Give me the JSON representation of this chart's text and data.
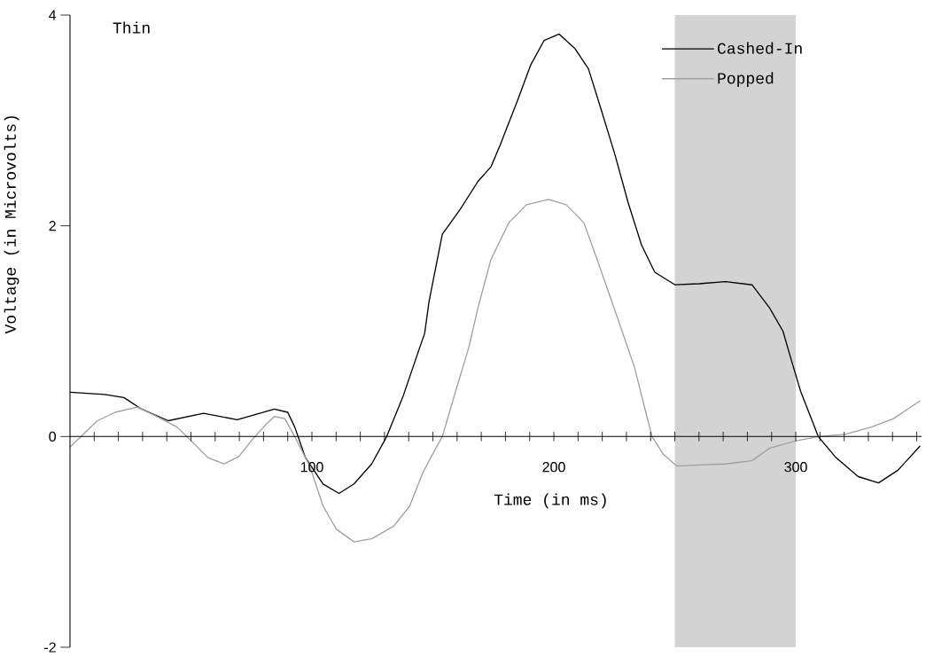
{
  "chart_data": {
    "type": "line",
    "title": "Thin",
    "xlabel": "Time (in ms)",
    "ylabel": "Voltage (in Microvolts)",
    "xlim": [
      0,
      352
    ],
    "ylim": [
      -2,
      4
    ],
    "yticks": [
      -2,
      0,
      2,
      4
    ],
    "xticks": [
      {
        "value": 10,
        "label": null
      },
      {
        "value": 20,
        "label": null
      },
      {
        "value": 30,
        "label": null
      },
      {
        "value": 40,
        "label": null
      },
      {
        "value": 50,
        "label": null
      },
      {
        "value": 60,
        "label": null
      },
      {
        "value": 70,
        "label": null
      },
      {
        "value": 80,
        "label": null
      },
      {
        "value": 90,
        "label": null
      },
      100,
      {
        "value": 110,
        "label": null
      },
      {
        "value": 120,
        "label": null
      },
      {
        "value": 130,
        "label": null
      },
      {
        "value": 140,
        "label": null
      },
      {
        "value": 150,
        "label": null
      },
      {
        "value": 160,
        "label": null
      },
      {
        "value": 170,
        "label": null
      },
      {
        "value": 180,
        "label": null
      },
      {
        "value": 190,
        "label": null
      },
      200,
      {
        "value": 210,
        "label": null
      },
      {
        "value": 220,
        "label": null
      },
      {
        "value": 230,
        "label": null
      },
      {
        "value": 240,
        "label": null
      },
      {
        "value": 250,
        "label": null
      },
      {
        "value": 260,
        "label": null
      },
      {
        "value": 270,
        "label": null
      },
      {
        "value": 280,
        "label": null
      },
      {
        "value": 290,
        "label": null
      },
      300,
      {
        "value": 310,
        "label": null
      },
      {
        "value": 320,
        "label": null
      },
      {
        "value": 330,
        "label": null
      },
      {
        "value": 340,
        "label": null
      },
      {
        "value": 350,
        "label": null
      }
    ],
    "legend": "top right",
    "bands": [
      {
        "axis": "x",
        "from": 250,
        "to": 300,
        "color": "#d3d3d3"
      }
    ],
    "series": [
      {
        "name": "Cashed-In",
        "color": "#000000",
        "x": [
          0,
          14.3,
          22.3,
          29.6,
          40.6,
          55.2,
          69.1,
          84.5,
          90,
          92.9,
          97.3,
          104.6,
          111.2,
          117.4,
          124.7,
          130.9,
          137.5,
          143,
          146.6,
          148.4,
          153.9,
          161.4,
          168.6,
          174,
          177.7,
          185,
          190.5,
          196,
          202.2,
          208.8,
          214.3,
          219.6,
          225.2,
          230.7,
          236.2,
          241.7,
          250.1,
          260,
          271,
          281.9,
          289.2,
          294.7,
          297.6,
          302,
          309.3,
          316.6,
          325.8,
          334.2,
          342.2,
          351.4
        ],
        "values": [
          0.42,
          0.4,
          0.37,
          0.26,
          0.15,
          0.22,
          0.16,
          0.26,
          0.23,
          0.09,
          -0.2,
          -0.45,
          -0.54,
          -0.45,
          -0.26,
          0,
          0.37,
          0.74,
          0.98,
          1.28,
          1.92,
          2.16,
          2.42,
          2.56,
          2.76,
          3.19,
          3.53,
          3.76,
          3.82,
          3.68,
          3.49,
          3.1,
          2.68,
          2.22,
          1.82,
          1.56,
          1.44,
          1.45,
          1.47,
          1.44,
          1.22,
          1.0,
          0.77,
          0.43,
          0,
          -0.2,
          -0.38,
          -0.44,
          -0.32,
          -0.09
        ]
      },
      {
        "name": "Popped",
        "color": "#a0a0a0",
        "x": [
          0,
          5.9,
          11.3,
          18.6,
          27.8,
          35.1,
          44.2,
          49.7,
          57,
          63.6,
          69.8,
          75.3,
          80.8,
          84.5,
          88.8,
          92.9,
          99.1,
          104.6,
          110.1,
          117.4,
          124.7,
          133.8,
          140.4,
          145.9,
          150.3,
          153.9,
          159.4,
          164.9,
          168.6,
          174,
          181.4,
          188.7,
          197.8,
          205.1,
          212.4,
          217.9,
          225.2,
          233.3,
          238,
          240.6,
          245.3,
          250.8,
          260,
          270.9,
          281.9,
          289.2,
          300.2,
          309.3,
          320.3,
          331.3,
          340.4,
          351.4
        ],
        "values": [
          -0.1,
          0.03,
          0.15,
          0.23,
          0.28,
          0.2,
          0.09,
          -0.03,
          -0.2,
          -0.26,
          -0.19,
          -0.03,
          0.11,
          0.19,
          0.17,
          0,
          -0.28,
          -0.66,
          -0.88,
          -1.0,
          -0.97,
          -0.85,
          -0.66,
          -0.34,
          -0.15,
          0,
          0.43,
          0.85,
          1.22,
          1.68,
          2.03,
          2.2,
          2.25,
          2.2,
          2.03,
          1.68,
          1.2,
          0.66,
          0.23,
          0,
          -0.17,
          -0.28,
          -0.27,
          -0.26,
          -0.23,
          -0.11,
          -0.04,
          0,
          0.02,
          0.09,
          0.17,
          0.34
        ]
      }
    ]
  }
}
